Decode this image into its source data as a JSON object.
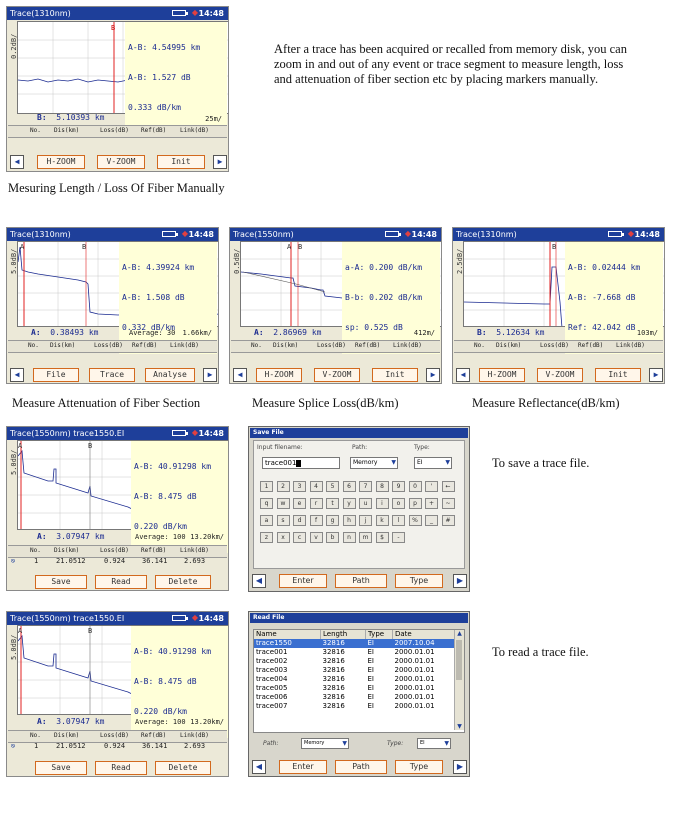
{
  "captions": {
    "manual": "Mesuring Length / Loss Of Fiber Manually",
    "atten": "Measure Attenuation of Fiber Section",
    "splice": "Measure Splice Loss(dB/km)",
    "reflect": "Measure Reflectance(dB/km)",
    "save": "To save a trace file.",
    "read": "To read a trace file."
  },
  "intro_text": "After a trace has been acquired or recalled from memory disk, you can zoom in and out of any event or trace segment to measure length, loss and attenuation of fiber section etc by placing markers manually.",
  "clock": "14:48",
  "table_headers": {
    "no": "No.",
    "dis": "Dis(km)",
    "loss": "Loss(dB)",
    "ref": "Ref(dB)",
    "link": "Link(dB)"
  },
  "screen1": {
    "title": "Trace(1310nm)",
    "ylabel": "0.2dB/",
    "marker_b": "B",
    "info_lines": [
      "A-B: 4.54995 km",
      "A-B: 1.527 dB",
      "0.333 dB/km"
    ],
    "readout_label": "B:",
    "readout_value": "5.10393 km",
    "scale": "25m/",
    "buttons": [
      "H-ZOOM",
      "V-ZOOM",
      "Init"
    ]
  },
  "screen2": {
    "title": "Trace(1310nm)",
    "ylabel": "5.0dB/",
    "marker_a": "A",
    "marker_b": "B",
    "info_lines": [
      "A-B: 4.39924 km",
      "A-B: 1.508 dB",
      "0.332 dB/km"
    ],
    "readout_label": "A:",
    "readout_value": "0.38493 km",
    "avg": "Average: 30",
    "scale": "1.66km/",
    "buttons": [
      "File",
      "Trace",
      "Analyse"
    ]
  },
  "screen3": {
    "title": "Trace(1550nm)",
    "ylabel": "0.5dB/",
    "marker_a": "A",
    "marker_b": "B",
    "info_lines": [
      "a-A: 0.200 dB/km",
      "B-b: 0.202 dB/km",
      "sp: 0.525 dB"
    ],
    "readout_label": "A:",
    "readout_value": "2.86969 km",
    "scale": "412m/",
    "buttons": [
      "H-ZOOM",
      "V-ZOOM",
      "Init"
    ]
  },
  "screen4": {
    "title": "Trace(1310nm)",
    "ylabel": "2.5dB/",
    "marker_b": "B",
    "info_lines": [
      "A-B: 0.02444 km",
      "A-B: -7.668 dB",
      "Ref: 42.042 dB"
    ],
    "readout_label": "B:",
    "readout_value": "5.12634 km",
    "scale": "103m/",
    "buttons": [
      "H-ZOOM",
      "V-ZOOM",
      "Init"
    ]
  },
  "screen5": {
    "title": "Trace(1550nm) trace1550.EI",
    "ylabel": "5.0dB/",
    "marker_a": "A",
    "marker_b": "B",
    "info_lines": [
      "A-B: 40.91298 km",
      "A-B: 8.475 dB",
      "0.220 dB/km"
    ],
    "readout_label": "A:",
    "readout_value": "3.07947 km",
    "avg": "Average: 100",
    "scale": "13.20km/",
    "row": [
      "1",
      "21.0512",
      "0.924",
      "36.141",
      "2.693"
    ],
    "buttons": [
      "Save",
      "Read",
      "Delete"
    ]
  },
  "screen6": {
    "title": "Trace(1550nm) trace1550.EI",
    "ylabel": "5.0dB/",
    "marker_a": "A",
    "marker_b": "B",
    "info_lines": [
      "A-B: 40.91298 km",
      "A-B: 8.475 dB",
      "0.220 dB/km"
    ],
    "readout_label": "A:",
    "readout_value": "3.07947 km",
    "avg": "Average: 100",
    "scale": "13.20km/",
    "row": [
      "1",
      "21.0512",
      "0.924",
      "36.141",
      "2.693"
    ],
    "buttons": [
      "Save",
      "Read",
      "Delete"
    ]
  },
  "save_dialog": {
    "title": "Save File",
    "input_label": "Input filename:",
    "input_value": "trace001",
    "path_label": "Path:",
    "path_value": "Memory",
    "type_label": "Type:",
    "type_value": "EI",
    "keys_row1": [
      "1",
      "2",
      "3",
      "4",
      "5",
      "6",
      "7",
      "8",
      "9",
      "0",
      "'",
      "←"
    ],
    "keys_row2": [
      "q",
      "w",
      "e",
      "r",
      "t",
      "y",
      "u",
      "i",
      "o",
      "p",
      "+",
      "~"
    ],
    "keys_row3": [
      "a",
      "s",
      "d",
      "f",
      "g",
      "h",
      "j",
      "k",
      "l",
      "%",
      "_",
      "#"
    ],
    "keys_row4": [
      "z",
      "x",
      "c",
      "v",
      "b",
      "n",
      "m",
      "$",
      "-"
    ],
    "buttons": [
      "Enter",
      "Path",
      "Type"
    ]
  },
  "read_dialog": {
    "title": "Read File",
    "columns": [
      "Name",
      "Length",
      "Type",
      "Date"
    ],
    "rows": [
      [
        "trace1550",
        "32816",
        "EI",
        "2007.10.04"
      ],
      [
        "trace001",
        "32816",
        "EI",
        "2000.01.01"
      ],
      [
        "trace002",
        "32816",
        "EI",
        "2000.01.01"
      ],
      [
        "trace003",
        "32816",
        "EI",
        "2000.01.01"
      ],
      [
        "trace004",
        "32816",
        "EI",
        "2000.01.01"
      ],
      [
        "trace005",
        "32816",
        "EI",
        "2000.01.01"
      ],
      [
        "trace006",
        "32816",
        "EI",
        "2000.01.01"
      ],
      [
        "trace007",
        "32816",
        "EI",
        "2000.01.01"
      ]
    ],
    "path_label": "Path:",
    "path_value": "Memory",
    "type_label": "Type:",
    "type_value": "EI",
    "buttons": [
      "Enter",
      "Path",
      "Type"
    ]
  }
}
